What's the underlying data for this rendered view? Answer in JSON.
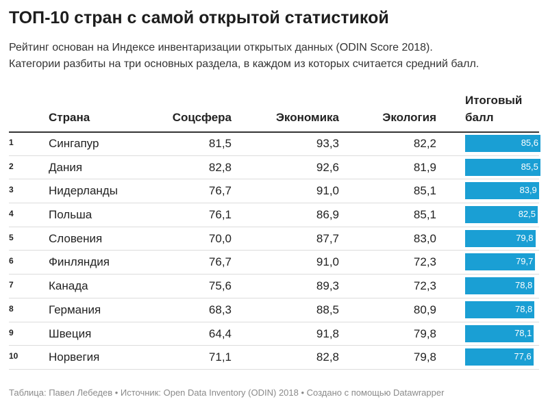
{
  "title": "ТОП-10 стран с самой открытой статистикой",
  "subtitle_line1": "Рейтинг основан на Индексе инвентаризации открытых данных (ODIN Score 2018).",
  "subtitle_line2": "Категории разбиты на три основных раздела, в каждом из которых считается средний балл.",
  "columns": {
    "country": "Страна",
    "social": "Соцсфера",
    "economy": "Экономика",
    "ecology": "Экология",
    "total_line1": "Итоговый",
    "total_line2": "балл"
  },
  "footer": "Таблица: Павел Лебедев • Источник: Open Data Inventory (ODIN) 2018 • Создано с помощью Datawrapper",
  "colors": {
    "bar": "#1a9fd4",
    "text": "#222222",
    "footer": "#8a8a8a"
  },
  "chart_data": {
    "type": "table",
    "bar_column": "total",
    "bar_scale_max": 85.6,
    "rows": [
      {
        "rank": "1",
        "country": "Сингапур",
        "social": "81,5",
        "economy": "93,3",
        "ecology": "82,2",
        "total_label": "85,6",
        "total": 85.6
      },
      {
        "rank": "2",
        "country": "Дания",
        "social": "82,8",
        "economy": "92,6",
        "ecology": "81,9",
        "total_label": "85,5",
        "total": 85.5
      },
      {
        "rank": "3",
        "country": "Нидерланды",
        "social": "76,7",
        "economy": "91,0",
        "ecology": "85,1",
        "total_label": "83,9",
        "total": 83.9
      },
      {
        "rank": "4",
        "country": "Польша",
        "social": "76,1",
        "economy": "86,9",
        "ecology": "85,1",
        "total_label": "82,5",
        "total": 82.5
      },
      {
        "rank": "5",
        "country": "Словения",
        "social": "70,0",
        "economy": "87,7",
        "ecology": "83,0",
        "total_label": "79,8",
        "total": 79.8
      },
      {
        "rank": "6",
        "country": "Финляндия",
        "social": "76,7",
        "economy": "91,0",
        "ecology": "72,3",
        "total_label": "79,7",
        "total": 79.7
      },
      {
        "rank": "7",
        "country": "Канада",
        "social": "75,6",
        "economy": "89,3",
        "ecology": "72,3",
        "total_label": "78,8",
        "total": 78.8
      },
      {
        "rank": "8",
        "country": "Германия",
        "social": "68,3",
        "economy": "88,5",
        "ecology": "80,9",
        "total_label": "78,8",
        "total": 78.8
      },
      {
        "rank": "9",
        "country": "Швеция",
        "social": "64,4",
        "economy": "91,8",
        "ecology": "79,8",
        "total_label": "78,1",
        "total": 78.1
      },
      {
        "rank": "10",
        "country": "Норвегия",
        "social": "71,1",
        "economy": "82,8",
        "ecology": "79,8",
        "total_label": "77,6",
        "total": 77.6
      }
    ]
  }
}
